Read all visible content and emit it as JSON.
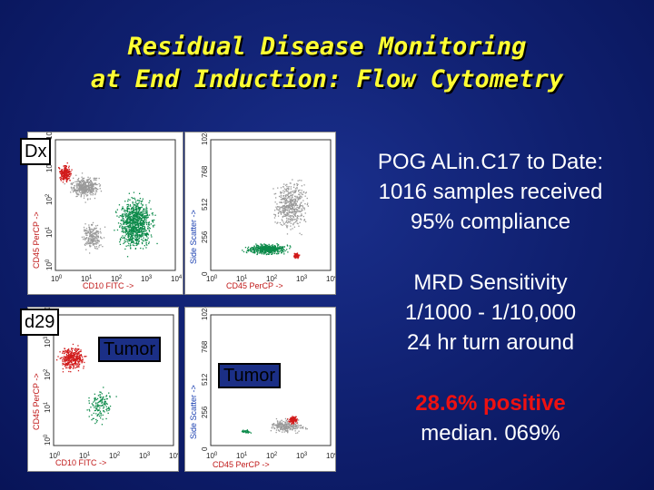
{
  "title": {
    "line1": "Residual Disease Monitoring",
    "line2": "at End Induction: Flow Cytometry"
  },
  "labels": {
    "dx": "Dx",
    "d29": "d29",
    "tumor_left": "Tumor",
    "tumor_right": "Tumor"
  },
  "plots": {
    "cd10_fitc": "CD10 FITC ->",
    "cd45_percp": "CD45 PerCP ->",
    "side_scatter": "Side Scatter ->",
    "log_ticks": [
      "10^0",
      "10^1",
      "10^2",
      "10^3",
      "10^4"
    ],
    "lin_ticks": [
      "0",
      "256",
      "512",
      "768",
      "1024"
    ]
  },
  "info": {
    "line1": "POG ALin.C17 to Date:",
    "line2": "1016 samples received",
    "line3": "95% compliance",
    "line4": "MRD Sensitivity",
    "line5": "1/1000 - 1/10,000",
    "line6": "24 hr turn around",
    "line7": "28.6% positive",
    "line8": "median. 069%"
  },
  "colors": {
    "title": "#ffff33",
    "highlight": "#ee1111",
    "green_events": "#0c8a4a",
    "red_events": "#d11a1a",
    "gray_events": "#9a9a9a"
  }
}
